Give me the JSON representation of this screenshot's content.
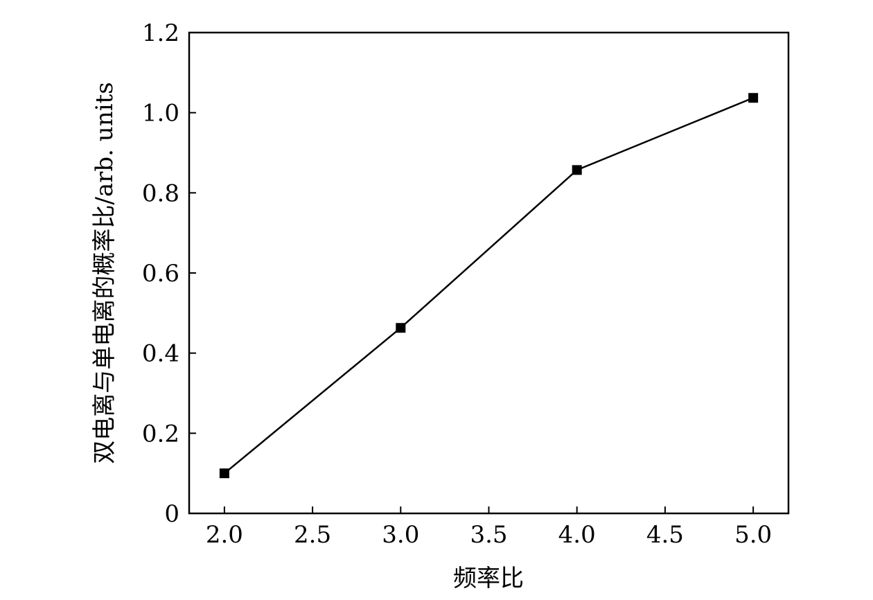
{
  "chart_data": {
    "type": "line",
    "x": [
      2.0,
      3.0,
      4.0,
      5.0
    ],
    "series": [
      {
        "values": [
          0.1,
          0.463,
          0.857,
          1.037
        ]
      }
    ],
    "xlabel": "频率比",
    "ylabel": "双电离与单电离的概率比/arb. units",
    "xlim": [
      1.8,
      5.2
    ],
    "ylim": [
      0,
      1.2
    ],
    "x_ticks": [
      "2.0",
      "2.5",
      "3.0",
      "3.5",
      "4.0",
      "4.5",
      "5.0"
    ],
    "y_ticks": [
      "0",
      "0.2",
      "0.4",
      "0.6",
      "0.8",
      "1.0",
      "1.2"
    ],
    "marker": "square",
    "grid": false,
    "colors": {
      "line": "#000000",
      "marker": "#000000",
      "frame": "#000000"
    }
  }
}
